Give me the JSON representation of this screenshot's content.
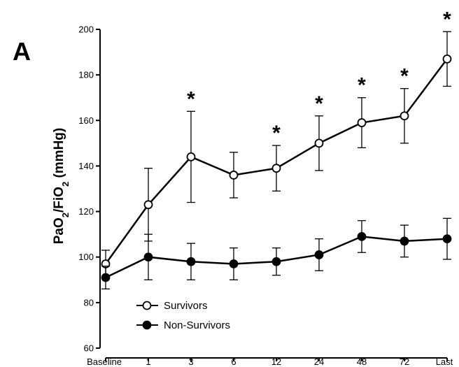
{
  "panel_label": "A",
  "chart_data": {
    "type": "line",
    "title": "",
    "xlabel": "",
    "ylabel": "PaO2/FiO2 (mmHg)",
    "ylabel_parts": {
      "a": "PaO",
      "a_sub": "2",
      "b": "/FiO",
      "b_sub": "2",
      "c": " (mmHg)"
    },
    "categories": [
      "Baseline",
      "1",
      "3",
      "6",
      "12",
      "24",
      "48",
      "72",
      "Last"
    ],
    "ylim": [
      60,
      200
    ],
    "yticks": [
      "60",
      "80",
      "100",
      "120",
      "140",
      "160",
      "180",
      "200"
    ],
    "grid": false,
    "legend_position": "bottom-left",
    "series": [
      {
        "name": "Survivors",
        "marker": "open-circle",
        "values": [
          97,
          123,
          144,
          136,
          139,
          150,
          159,
          162,
          187
        ],
        "err": [
          6,
          16,
          20,
          10,
          10,
          12,
          11,
          12,
          12
        ]
      },
      {
        "name": "Non-Survivors",
        "marker": "filled-circle",
        "values": [
          91,
          100,
          98,
          97,
          98,
          101,
          109,
          107,
          108
        ],
        "err": [
          5,
          10,
          8,
          7,
          6,
          7,
          7,
          7,
          9
        ]
      }
    ],
    "annotations": [
      {
        "text": "*",
        "category": "3"
      },
      {
        "text": "*",
        "category": "12"
      },
      {
        "text": "*",
        "category": "24"
      },
      {
        "text": "*",
        "category": "48"
      },
      {
        "text": "*",
        "category": "72"
      },
      {
        "text": "*",
        "category": "Last"
      }
    ],
    "colors": {
      "line": "#000000",
      "background": "#ffffff"
    }
  }
}
